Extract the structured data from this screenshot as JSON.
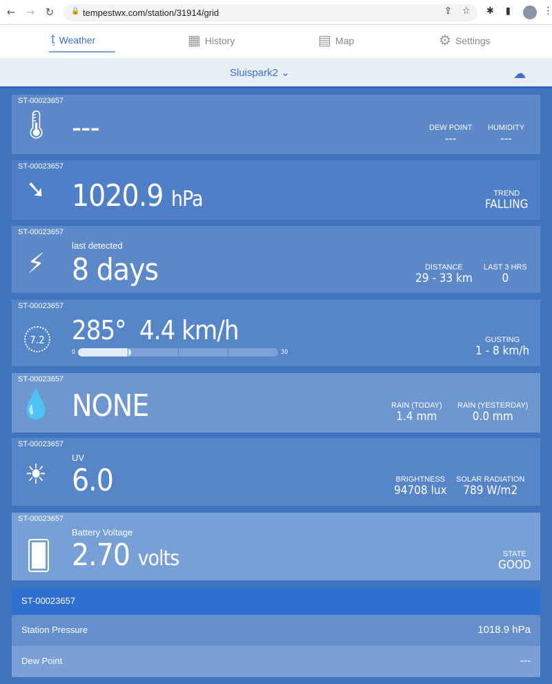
{
  "browser": {
    "url": "tempestwx.com/station/31914/grid"
  },
  "tabs": [
    {
      "label": "Weather",
      "icon": "tempest-logo-icon"
    },
    {
      "label": "History",
      "icon": "calendar-icon"
    },
    {
      "label": "Map",
      "icon": "map-icon"
    },
    {
      "label": "Settings",
      "icon": "gear-icon"
    }
  ],
  "station": {
    "name": "Sluispark2"
  },
  "cards": {
    "temperature": {
      "id": "ST-00023657",
      "value": "---",
      "dew_label": "DEW POINT",
      "dew": "---",
      "hum_label": "HUMIDITY",
      "hum": "---"
    },
    "pressure": {
      "id": "ST-00023657",
      "value": "1020.9",
      "unit": "hPa",
      "trend_label": "TREND",
      "trend": "FALLING"
    },
    "lightning": {
      "id": "ST-00023657",
      "sub": "last detected",
      "value": "8 days",
      "dist_label": "DISTANCE",
      "dist": "29 - 33 km",
      "last_label": "LAST 3 HRS",
      "last": "0"
    },
    "wind": {
      "id": "ST-00023657",
      "compass": "7.2",
      "direction": "285°",
      "speed": "4.4 km/h",
      "min": "0",
      "max": "30",
      "gust_label": "GUSTING",
      "gust": "1 - 8 km/h",
      "gust_max": 8,
      "scale_max": 30
    },
    "rain": {
      "id": "ST-00023657",
      "value": "NONE",
      "today_label": "RAIN (TODAY)",
      "today": "1.4 mm",
      "yest_label": "RAIN (YESTERDAY)",
      "yest": "0.0 mm"
    },
    "uv": {
      "id": "ST-00023657",
      "sub": "UV",
      "value": "6.0",
      "bright_label": "BRIGHTNESS",
      "bright": "94708 lux",
      "solar_label": "SOLAR RADIATION",
      "solar": "789 W/m2"
    },
    "battery": {
      "id": "ST-00023657",
      "sub": "Battery Voltage",
      "value": "2.70",
      "unit": "volts",
      "state_label": "STATE",
      "state": "GOOD"
    }
  },
  "table": {
    "header": "ST-00023657",
    "rows": [
      {
        "label": "Station Pressure",
        "value": "1018.9 hPa"
      },
      {
        "label": "Dew Point",
        "value": "---"
      }
    ]
  }
}
